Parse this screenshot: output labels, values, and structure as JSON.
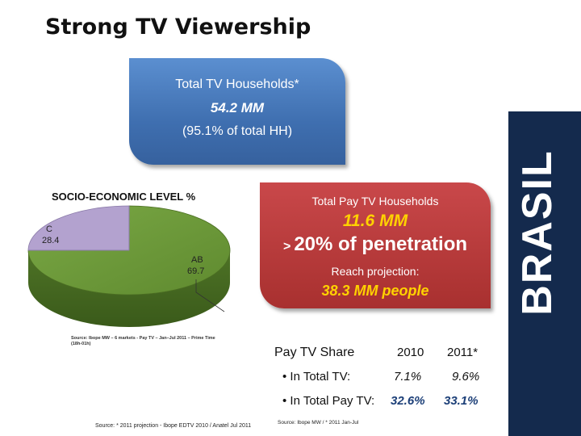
{
  "title": "Strong TV Viewership",
  "side_banner": "BRASIL",
  "tv_households": {
    "label": "Total TV Households*",
    "value": "54.2 MM",
    "note": "(95.1% of total HH)"
  },
  "pay_tv": {
    "label": "Total Pay TV Households",
    "value": "11.6 MM",
    "penetration_prefix": ">",
    "penetration": "20% of penetration",
    "reach_label": "Reach projection:",
    "reach_value": "38.3 MM people"
  },
  "pie": {
    "title": "SOCIO-ECONOMIC LEVEL %",
    "slices": [
      {
        "name": "C",
        "value": 28.4,
        "value_label": "28.4",
        "color": "#b3a2cf"
      },
      {
        "name": "AB",
        "value": 69.7,
        "value_label": "69.7",
        "color": "#6f9b3a"
      }
    ],
    "source": "Source: Ibope MW – 6 markets - Pay TV – Jan–Jul 2011 – Prime Time (18h-01h)"
  },
  "pay_share": {
    "header_label": "Pay TV Share",
    "col_2010": "2010",
    "col_2011": "2011*",
    "rows": [
      {
        "label": "• In Total TV:",
        "v2010": "7.1%",
        "v2011": "9.6%"
      },
      {
        "label": "• In Total Pay TV:",
        "v2010": "32.6%",
        "v2011": "33.1%"
      }
    ]
  },
  "footer": {
    "source_left": "Source: * 2011 projection - Ibope EDTV 2010 / Anatel Jul 2011",
    "source_mid": "Source: Ibope MW / * 2011 Jan-Jul"
  }
}
